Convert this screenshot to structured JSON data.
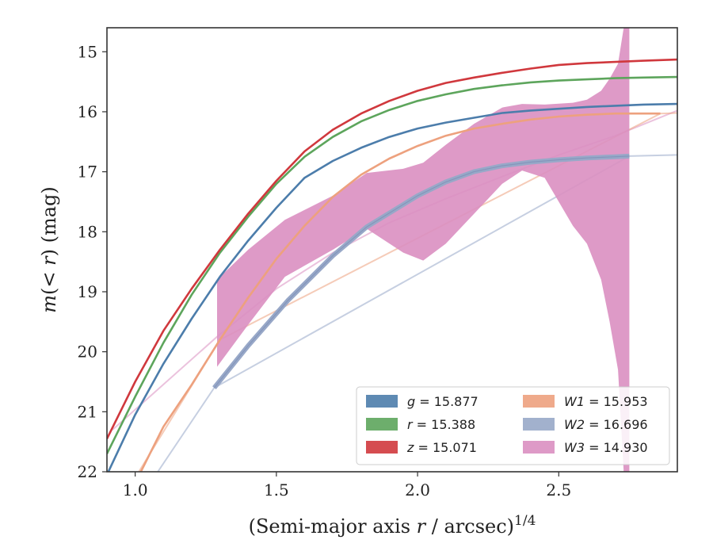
{
  "chart_data": {
    "type": "line",
    "xlabel_pre": "(Semi-major axis ",
    "xlabel_var": "r",
    "xlabel_post": " / arcsec)",
    "xlabel_sup": "1/4",
    "ylabel_m": "m",
    "ylabel_open": "(< ",
    "ylabel_var": "r",
    "ylabel_close": ") (mag)",
    "xlim": [
      0.9,
      2.92
    ],
    "ylim": [
      22.0,
      14.6
    ],
    "y_inverted": true,
    "xticks": [
      1.0,
      1.5,
      2.0,
      2.5
    ],
    "xtick_labels": [
      "1.0",
      "1.5",
      "2.0",
      "2.5"
    ],
    "yticks": [
      15,
      16,
      17,
      18,
      19,
      20,
      21,
      22
    ],
    "ytick_labels": [
      "15",
      "16",
      "17",
      "18",
      "19",
      "20",
      "21",
      "22"
    ],
    "grid": false,
    "legend_position": "lower-right",
    "series": [
      {
        "var": "g",
        "value": "15.877",
        "color": "#4c7dab",
        "style": "line",
        "x": [
          0.9,
          1.0,
          1.1,
          1.2,
          1.3,
          1.4,
          1.5,
          1.6,
          1.7,
          1.8,
          1.9,
          2.0,
          2.1,
          2.2,
          2.3,
          2.4,
          2.5,
          2.6,
          2.7,
          2.8,
          2.92
        ],
        "y": [
          22.05,
          21.05,
          20.2,
          19.45,
          18.75,
          18.15,
          17.6,
          17.1,
          16.82,
          16.6,
          16.42,
          16.28,
          16.18,
          16.1,
          16.02,
          15.98,
          15.95,
          15.92,
          15.9,
          15.88,
          15.87
        ]
      },
      {
        "var": "r",
        "value": "15.388",
        "color": "#5da55c",
        "style": "line",
        "x": [
          0.9,
          1.0,
          1.1,
          1.2,
          1.3,
          1.4,
          1.5,
          1.6,
          1.7,
          1.8,
          1.9,
          2.0,
          2.1,
          2.2,
          2.3,
          2.4,
          2.5,
          2.6,
          2.7,
          2.8,
          2.92
        ],
        "y": [
          21.7,
          20.75,
          19.85,
          19.05,
          18.35,
          17.75,
          17.2,
          16.75,
          16.42,
          16.16,
          15.97,
          15.82,
          15.71,
          15.62,
          15.56,
          15.51,
          15.48,
          15.46,
          15.44,
          15.43,
          15.42
        ]
      },
      {
        "var": "z",
        "value": "15.071",
        "color": "#d0383d",
        "style": "line",
        "x": [
          0.9,
          1.0,
          1.1,
          1.2,
          1.3,
          1.4,
          1.5,
          1.6,
          1.7,
          1.8,
          1.9,
          2.0,
          2.1,
          2.2,
          2.3,
          2.4,
          2.5,
          2.6,
          2.7,
          2.8,
          2.92
        ],
        "y": [
          21.45,
          20.5,
          19.65,
          18.95,
          18.3,
          17.7,
          17.15,
          16.66,
          16.3,
          16.03,
          15.82,
          15.65,
          15.52,
          15.43,
          15.35,
          15.28,
          15.22,
          15.19,
          15.17,
          15.15,
          15.13
        ]
      },
      {
        "var": "W1",
        "value": "15.953",
        "color": "#eda17e",
        "style": "line",
        "x": [
          1.02,
          1.1,
          1.2,
          1.3,
          1.4,
          1.5,
          1.6,
          1.7,
          1.8,
          1.9,
          2.0,
          2.1,
          2.2,
          2.3,
          2.4,
          2.5,
          2.6,
          2.7,
          2.86
        ],
        "y": [
          22.0,
          21.25,
          20.55,
          19.8,
          19.1,
          18.45,
          17.9,
          17.42,
          17.05,
          16.78,
          16.57,
          16.4,
          16.28,
          16.2,
          16.13,
          16.08,
          16.05,
          16.03,
          16.03
        ],
        "faint_x": [
          1.0,
          1.3,
          2.86,
          2.92
        ],
        "faint_y": [
          22.1,
          19.8,
          16.03,
          16.02
        ]
      },
      {
        "var": "W2",
        "value": "16.696",
        "color": "#98a8c8",
        "style": "line",
        "x": [
          1.28,
          1.4,
          1.54,
          1.7,
          1.82,
          2.0,
          2.1,
          2.2,
          2.3,
          2.4,
          2.5,
          2.6,
          2.7,
          2.75
        ],
        "y": [
          20.6,
          19.9,
          19.15,
          18.4,
          17.92,
          17.4,
          17.17,
          17.0,
          16.9,
          16.84,
          16.8,
          16.77,
          16.75,
          16.74
        ],
        "faint_x": [
          1.08,
          1.28,
          2.75,
          2.92
        ],
        "faint_y": [
          22.0,
          20.6,
          16.74,
          16.72
        ]
      },
      {
        "var": "W3",
        "value": "14.930",
        "color": "#da8fc1",
        "style": "band",
        "x": [
          1.29,
          1.4,
          1.53,
          1.7,
          1.82,
          1.95,
          2.02,
          2.1,
          2.2,
          2.3,
          2.37,
          2.45,
          2.55,
          2.6,
          2.65,
          2.68,
          2.71,
          2.73,
          2.75
        ],
        "y_upper": [
          18.8,
          18.3,
          17.8,
          17.4,
          17.02,
          16.95,
          16.85,
          16.55,
          16.2,
          15.93,
          15.87,
          15.88,
          15.85,
          15.8,
          15.65,
          15.45,
          15.2,
          14.6,
          14.6
        ],
        "y_lower": [
          20.25,
          19.55,
          18.75,
          18.3,
          17.95,
          18.35,
          18.48,
          18.2,
          17.7,
          17.2,
          16.98,
          17.1,
          17.9,
          18.2,
          18.8,
          19.5,
          20.3,
          22.0,
          22.0
        ],
        "faint_x": [
          0.92,
          1.29,
          1.5,
          1.7,
          1.9,
          2.1,
          2.3,
          2.5,
          2.7,
          2.92
        ],
        "faint_y": [
          21.3,
          19.75,
          18.95,
          18.35,
          17.85,
          17.45,
          17.08,
          16.72,
          16.4,
          15.98
        ]
      }
    ]
  }
}
